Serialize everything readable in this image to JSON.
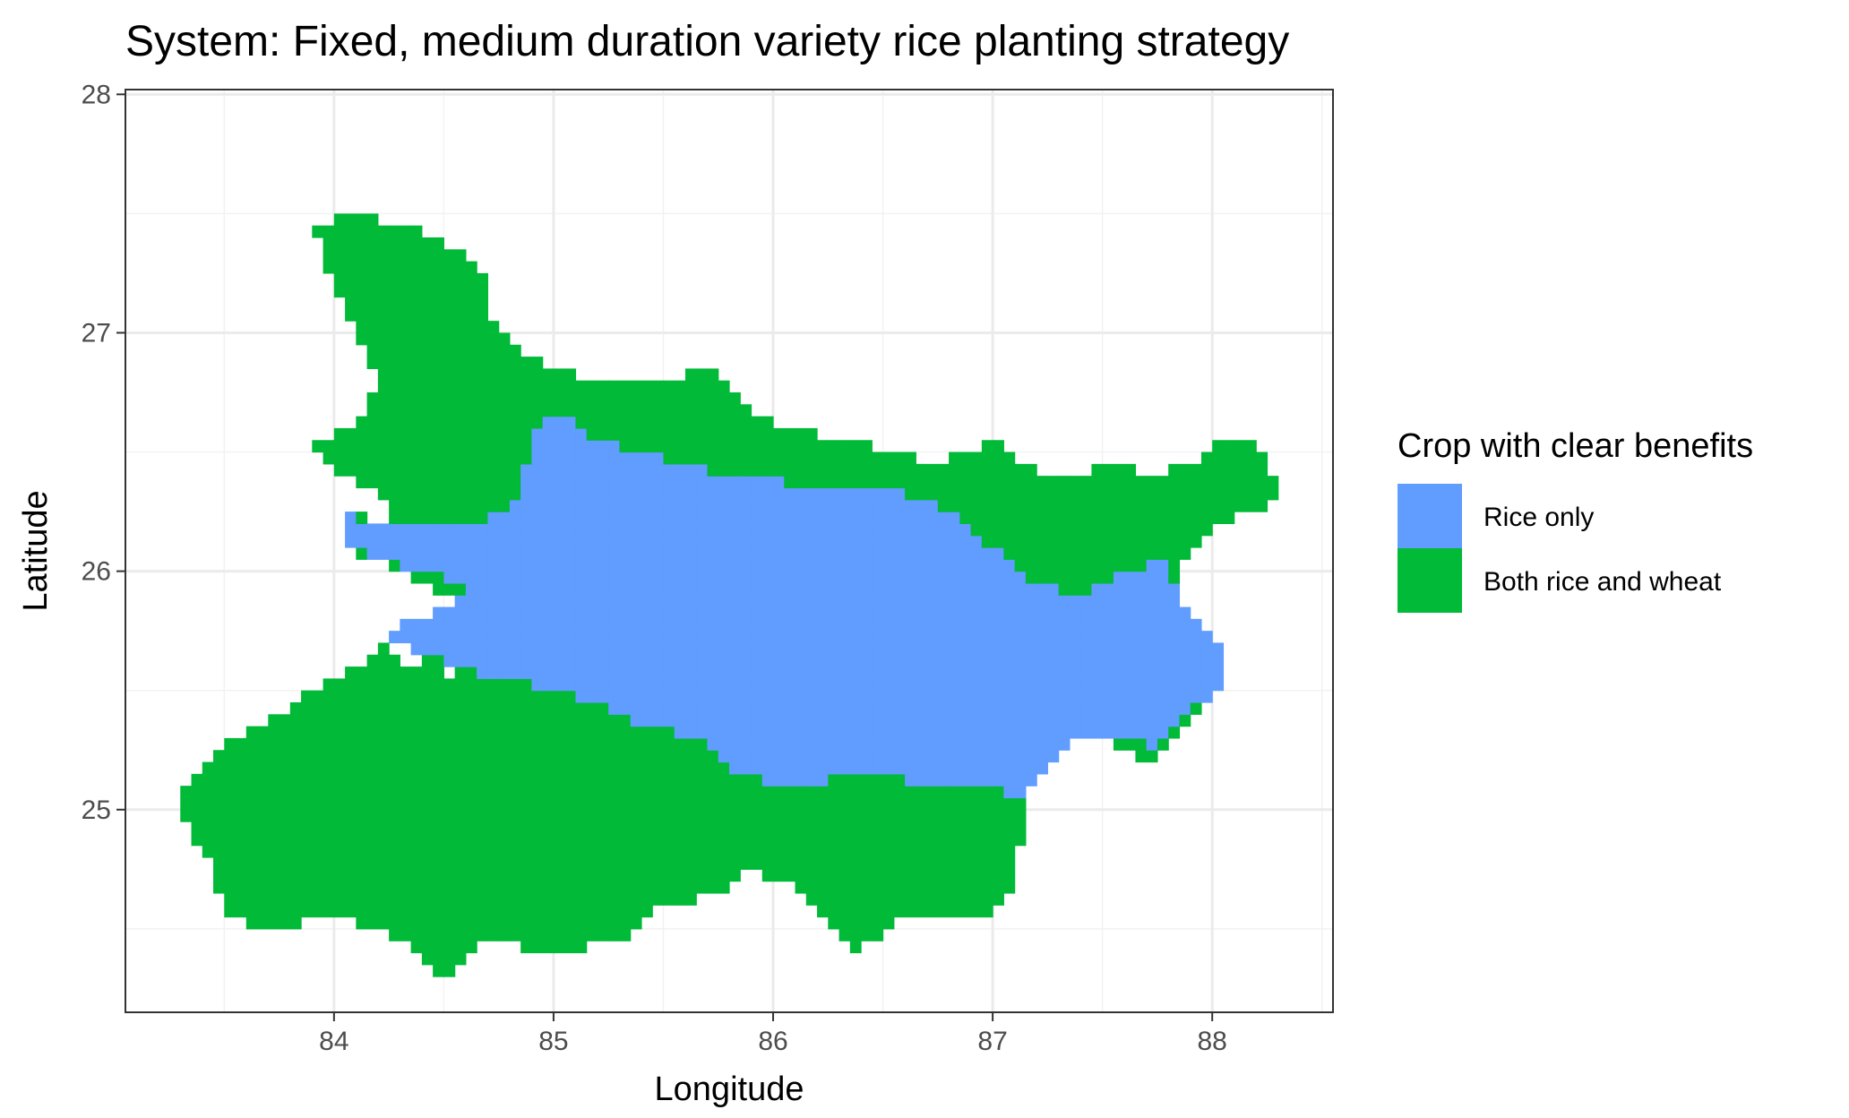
{
  "chart_data": {
    "type": "heatmap",
    "title": "System: Fixed, medium duration variety rice planting strategy",
    "xlabel": "Longitude",
    "ylabel": "Latitude",
    "xlim": [
      83.05,
      88.55
    ],
    "ylim": [
      24.15,
      28.02
    ],
    "x_ticks": [
      "84",
      "85",
      "86",
      "87",
      "88"
    ],
    "y_ticks": [
      "25",
      "26",
      "27",
      "28"
    ],
    "grid": true,
    "legend_position": "right",
    "legend": {
      "title": "Crop with clear benefits",
      "entries": [
        {
          "label": "Rice only",
          "color": "#619CFF"
        },
        {
          "label": "Both rice and wheat",
          "color": "#00BA38"
        }
      ]
    },
    "cell_size_deg": 0.05,
    "green_outline": [
      [
        83.9,
        27.45
      ],
      [
        84.05,
        27.5
      ],
      [
        84.35,
        27.45
      ],
      [
        84.55,
        27.35
      ],
      [
        84.7,
        27.25
      ],
      [
        84.7,
        27.05
      ],
      [
        84.8,
        26.95
      ],
      [
        85.0,
        26.85
      ],
      [
        85.2,
        26.8
      ],
      [
        85.45,
        26.8
      ],
      [
        85.7,
        26.85
      ],
      [
        85.85,
        26.7
      ],
      [
        86.0,
        26.62
      ],
      [
        86.3,
        26.55
      ],
      [
        86.55,
        26.5
      ],
      [
        86.75,
        26.45
      ],
      [
        87.0,
        26.55
      ],
      [
        87.1,
        26.45
      ],
      [
        87.3,
        26.4
      ],
      [
        87.55,
        26.45
      ],
      [
        87.7,
        26.4
      ],
      [
        87.9,
        26.45
      ],
      [
        88.05,
        26.55
      ],
      [
        88.2,
        26.55
      ],
      [
        88.3,
        26.35
      ],
      [
        88.2,
        26.25
      ],
      [
        88.0,
        26.2
      ],
      [
        87.85,
        26.05
      ],
      [
        87.85,
        25.7
      ],
      [
        88.05,
        25.5
      ],
      [
        87.95,
        25.45
      ],
      [
        87.8,
        25.3
      ],
      [
        87.7,
        25.2
      ],
      [
        87.4,
        25.35
      ],
      [
        87.15,
        25.3
      ],
      [
        87.05,
        25.1
      ],
      [
        87.15,
        25.0
      ],
      [
        87.1,
        24.7
      ],
      [
        86.95,
        24.55
      ],
      [
        86.6,
        24.55
      ],
      [
        86.35,
        24.4
      ],
      [
        86.2,
        24.55
      ],
      [
        86.05,
        24.7
      ],
      [
        85.85,
        24.75
      ],
      [
        85.75,
        24.65
      ],
      [
        85.5,
        24.6
      ],
      [
        85.3,
        24.45
      ],
      [
        85.0,
        24.4
      ],
      [
        84.7,
        24.45
      ],
      [
        84.5,
        24.3
      ],
      [
        84.3,
        24.45
      ],
      [
        84.0,
        24.55
      ],
      [
        83.7,
        24.5
      ],
      [
        83.5,
        24.55
      ],
      [
        83.45,
        24.75
      ],
      [
        83.35,
        24.9
      ],
      [
        83.3,
        25.05
      ],
      [
        83.4,
        25.2
      ],
      [
        83.55,
        25.3
      ],
      [
        83.75,
        25.4
      ],
      [
        83.9,
        25.5
      ],
      [
        84.1,
        25.6
      ],
      [
        84.2,
        25.7
      ],
      [
        84.3,
        25.6
      ],
      [
        84.5,
        25.65
      ],
      [
        84.55,
        25.4
      ],
      [
        84.6,
        25.85
      ],
      [
        84.4,
        25.95
      ],
      [
        84.2,
        26.05
      ],
      [
        84.05,
        26.1
      ],
      [
        84.05,
        26.25
      ],
      [
        84.25,
        26.2
      ],
      [
        84.2,
        26.35
      ],
      [
        84.0,
        26.4
      ],
      [
        83.9,
        26.55
      ],
      [
        84.1,
        26.6
      ],
      [
        84.2,
        26.8
      ],
      [
        84.05,
        27.1
      ],
      [
        83.95,
        27.3
      ]
    ],
    "blue_outline": [
      [
        84.05,
        26.25
      ],
      [
        84.2,
        26.18
      ],
      [
        84.3,
        26.2
      ],
      [
        84.65,
        26.2
      ],
      [
        84.75,
        26.25
      ],
      [
        84.85,
        26.35
      ],
      [
        84.9,
        26.55
      ],
      [
        84.95,
        26.65
      ],
      [
        85.05,
        26.65
      ],
      [
        85.2,
        26.55
      ],
      [
        85.4,
        26.5
      ],
      [
        85.6,
        26.45
      ],
      [
        85.8,
        26.4
      ],
      [
        86.0,
        26.38
      ],
      [
        86.3,
        26.35
      ],
      [
        86.6,
        26.33
      ],
      [
        86.8,
        26.25
      ],
      [
        87.0,
        26.1
      ],
      [
        87.2,
        25.95
      ],
      [
        87.4,
        25.9
      ],
      [
        87.6,
        26.0
      ],
      [
        87.8,
        26.05
      ],
      [
        87.85,
        25.85
      ],
      [
        87.95,
        25.75
      ],
      [
        88.05,
        25.65
      ],
      [
        88.05,
        25.5
      ],
      [
        87.9,
        25.45
      ],
      [
        87.8,
        25.35
      ],
      [
        87.75,
        25.25
      ],
      [
        87.6,
        25.3
      ],
      [
        87.45,
        25.3
      ],
      [
        87.35,
        25.3
      ],
      [
        87.2,
        25.15
      ],
      [
        87.1,
        25.05
      ],
      [
        86.95,
        25.1
      ],
      [
        86.75,
        25.1
      ],
      [
        86.4,
        25.15
      ],
      [
        86.1,
        25.1
      ],
      [
        85.8,
        25.15
      ],
      [
        85.65,
        25.3
      ],
      [
        85.4,
        25.35
      ],
      [
        85.2,
        25.45
      ],
      [
        85.0,
        25.5
      ],
      [
        84.75,
        25.55
      ],
      [
        84.55,
        25.6
      ],
      [
        84.4,
        25.65
      ],
      [
        84.3,
        25.72
      ],
      [
        84.2,
        25.7
      ],
      [
        84.35,
        25.8
      ],
      [
        84.55,
        25.85
      ],
      [
        84.6,
        25.95
      ],
      [
        84.4,
        26.0
      ],
      [
        84.2,
        26.05
      ],
      [
        84.05,
        26.12
      ]
    ]
  }
}
